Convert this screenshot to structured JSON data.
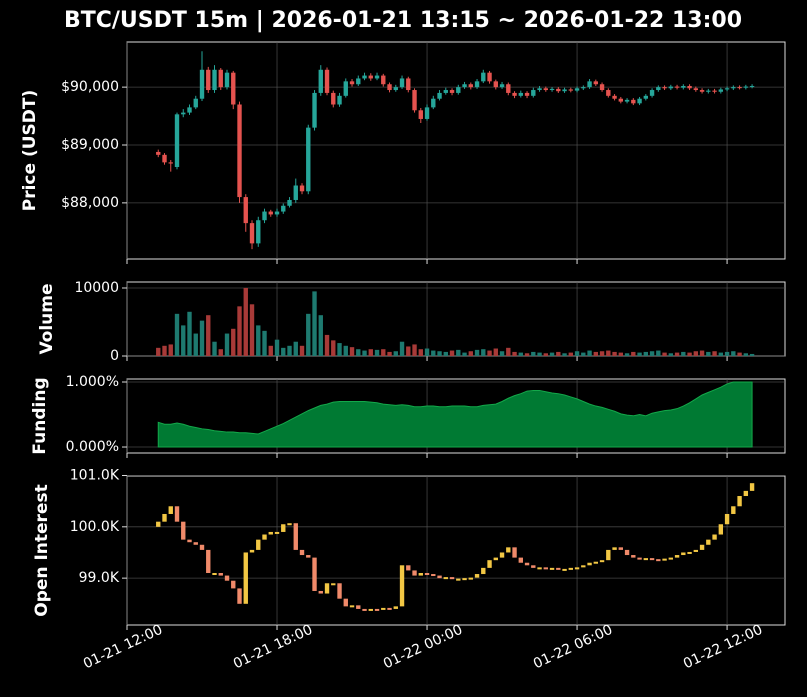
{
  "chart_data": [
    {
      "type": "candlestick",
      "title": "BTC/USDT 15m  |  2026-01-21 13:15 ~ 2026-01-22 13:00",
      "ylabel": "Price (USDT)",
      "up_color": "#26a69a",
      "down_color": "#e5534f",
      "grid": true,
      "x": [
        "2026-01-21 13:15",
        "2026-01-21 13:30",
        "2026-01-21 13:45",
        "2026-01-21 14:00",
        "2026-01-21 14:15",
        "2026-01-21 14:30",
        "2026-01-21 14:45",
        "2026-01-21 15:00",
        "2026-01-21 15:15",
        "2026-01-21 15:30",
        "2026-01-21 15:45",
        "2026-01-21 16:00",
        "2026-01-21 16:15",
        "2026-01-21 16:30",
        "2026-01-21 16:45",
        "2026-01-21 17:00",
        "2026-01-21 17:15",
        "2026-01-21 17:30",
        "2026-01-21 17:45",
        "2026-01-21 18:00",
        "2026-01-21 18:15",
        "2026-01-21 18:30",
        "2026-01-21 18:45",
        "2026-01-21 19:00",
        "2026-01-21 19:15",
        "2026-01-21 19:30",
        "2026-01-21 19:45",
        "2026-01-21 20:00",
        "2026-01-21 20:15",
        "2026-01-21 20:30",
        "2026-01-21 20:45",
        "2026-01-21 21:00",
        "2026-01-21 21:15",
        "2026-01-21 21:30",
        "2026-01-21 21:45",
        "2026-01-21 22:00",
        "2026-01-21 22:15",
        "2026-01-21 22:30",
        "2026-01-21 22:45",
        "2026-01-21 23:00",
        "2026-01-21 23:15",
        "2026-01-21 23:30",
        "2026-01-21 23:45",
        "2026-01-22 00:00",
        "2026-01-22 00:15",
        "2026-01-22 00:30",
        "2026-01-22 00:45",
        "2026-01-22 01:00",
        "2026-01-22 01:15",
        "2026-01-22 01:30",
        "2026-01-22 01:45",
        "2026-01-22 02:00",
        "2026-01-22 02:15",
        "2026-01-22 02:30",
        "2026-01-22 02:45",
        "2026-01-22 03:00",
        "2026-01-22 03:15",
        "2026-01-22 03:30",
        "2026-01-22 03:45",
        "2026-01-22 04:00",
        "2026-01-22 04:15",
        "2026-01-22 04:30",
        "2026-01-22 04:45",
        "2026-01-22 05:00",
        "2026-01-22 05:15",
        "2026-01-22 05:30",
        "2026-01-22 05:45",
        "2026-01-22 06:00",
        "2026-01-22 06:15",
        "2026-01-22 06:30",
        "2026-01-22 06:45",
        "2026-01-22 07:00",
        "2026-01-22 07:15",
        "2026-01-22 07:30",
        "2026-01-22 07:45",
        "2026-01-22 08:00",
        "2026-01-22 08:15",
        "2026-01-22 08:30",
        "2026-01-22 08:45",
        "2026-01-22 09:00",
        "2026-01-22 09:15",
        "2026-01-22 09:30",
        "2026-01-22 09:45",
        "2026-01-22 10:00",
        "2026-01-22 10:15",
        "2026-01-22 10:30",
        "2026-01-22 10:45",
        "2026-01-22 11:00",
        "2026-01-22 11:15",
        "2026-01-22 11:30",
        "2026-01-22 11:45",
        "2026-01-22 12:00",
        "2026-01-22 12:15",
        "2026-01-22 12:30",
        "2026-01-22 12:45",
        "2026-01-22 13:00"
      ],
      "open": [
        88880,
        88830,
        88700,
        88620,
        89530,
        89560,
        89650,
        89800,
        90300,
        89950,
        90300,
        90000,
        90250,
        89700,
        88100,
        87650,
        87300,
        87700,
        87850,
        87800,
        87850,
        87950,
        88050,
        88300,
        88200,
        89300,
        89900,
        90300,
        89900,
        89700,
        89850,
        90100,
        90050,
        90150,
        90200,
        90150,
        90200,
        90050,
        89950,
        90000,
        90150,
        89950,
        89600,
        89450,
        89650,
        89800,
        89900,
        89950,
        89900,
        90000,
        90050,
        90000,
        90100,
        90250,
        90100,
        90000,
        90050,
        89900,
        89850,
        89900,
        89850,
        89950,
        89980,
        89950,
        89970,
        89930,
        89960,
        89940,
        89980,
        90000,
        90100,
        90050,
        89950,
        89850,
        89800,
        89750,
        89780,
        89720,
        89800,
        89850,
        89950,
        90000,
        89980,
        90010,
        89990,
        90020,
        89980,
        89950,
        89920,
        89940,
        89920,
        89960,
        89980,
        90000,
        89990,
        90010
      ],
      "high": [
        88920,
        88860,
        88740,
        89560,
        89620,
        89700,
        89850,
        90620,
        90350,
        90380,
        90330,
        90300,
        90280,
        89750,
        88150,
        87700,
        87760,
        87900,
        87880,
        87900,
        87990,
        88100,
        88420,
        88340,
        89350,
        89950,
        90380,
        90340,
        89940,
        89900,
        90150,
        90140,
        90200,
        90250,
        90240,
        90250,
        90230,
        90080,
        90040,
        90200,
        90180,
        89980,
        89640,
        89700,
        89850,
        89950,
        89990,
        89980,
        90040,
        90090,
        90080,
        90140,
        90300,
        90280,
        90130,
        90090,
        90080,
        89930,
        89940,
        89930,
        89990,
        90020,
        90010,
        90000,
        90000,
        89990,
        89990,
        90010,
        90030,
        90140,
        90130,
        90080,
        89980,
        89880,
        89830,
        89810,
        89810,
        89830,
        89880,
        89980,
        90030,
        90030,
        90040,
        90040,
        90050,
        90050,
        90010,
        89980,
        89970,
        89970,
        89990,
        90010,
        90030,
        90030,
        90040,
        90050
      ],
      "low": [
        88790,
        88660,
        88540,
        88580,
        89480,
        89520,
        89620,
        89760,
        89900,
        89900,
        89950,
        89960,
        89620,
        88000,
        87500,
        87200,
        87240,
        87650,
        87760,
        87760,
        87810,
        87920,
        88000,
        88150,
        88150,
        89250,
        89850,
        89860,
        89650,
        89660,
        89820,
        90010,
        90020,
        90120,
        90110,
        90120,
        90010,
        89910,
        89920,
        89970,
        89910,
        89560,
        89380,
        89420,
        89620,
        89770,
        89870,
        89860,
        89870,
        89970,
        89960,
        89970,
        90070,
        90060,
        89960,
        89970,
        89860,
        89810,
        89820,
        89810,
        89820,
        89920,
        89920,
        89920,
        89900,
        89900,
        89910,
        89910,
        89950,
        89970,
        90020,
        89920,
        89820,
        89770,
        89720,
        89720,
        89690,
        89690,
        89770,
        89820,
        89920,
        89950,
        89950,
        89960,
        89960,
        89950,
        89920,
        89890,
        89890,
        89890,
        89890,
        89930,
        89950,
        89960,
        89960,
        89980
      ],
      "close": [
        88830,
        88700,
        88680,
        89530,
        89560,
        89650,
        89800,
        90300,
        89950,
        90300,
        90000,
        90250,
        89700,
        88100,
        87650,
        87300,
        87700,
        87850,
        87800,
        87850,
        87950,
        88050,
        88300,
        88200,
        89300,
        89900,
        90300,
        89900,
        89700,
        89850,
        90100,
        90050,
        90150,
        90200,
        90150,
        90200,
        90050,
        89950,
        90000,
        90150,
        89950,
        89600,
        89450,
        89650,
        89800,
        89900,
        89950,
        89900,
        90000,
        90050,
        90000,
        90100,
        90250,
        90100,
        90000,
        90050,
        89900,
        89850,
        89900,
        89850,
        89950,
        89980,
        89950,
        89970,
        89930,
        89960,
        89940,
        89980,
        90000,
        90100,
        90050,
        89950,
        89850,
        89800,
        89750,
        89780,
        89720,
        89800,
        89850,
        89950,
        90000,
        89980,
        90010,
        89990,
        90020,
        89980,
        89950,
        89920,
        89940,
        89920,
        89960,
        89980,
        90000,
        89990,
        90010,
        90020
      ],
      "ylim": [
        87030,
        90780
      ],
      "yticks": [
        {
          "value": 88000,
          "label": "$88,000"
        },
        {
          "value": 89000,
          "label": "$89,000"
        },
        {
          "value": 90000,
          "label": "$90,000"
        }
      ]
    },
    {
      "type": "bar",
      "ylabel": "Volume",
      "up_color": "#1e7a70",
      "down_color": "#a83a38",
      "grid": true,
      "values": [
        1200,
        1500,
        1700,
        6200,
        4500,
        6500,
        3300,
        5200,
        6000,
        2100,
        1000,
        3300,
        4000,
        7300,
        10000,
        7600,
        4500,
        3700,
        1500,
        2400,
        1200,
        1500,
        2100,
        1500,
        6200,
        9500,
        6000,
        3100,
        2300,
        1900,
        1500,
        1300,
        1000,
        800,
        1000,
        900,
        1000,
        600,
        700,
        2100,
        1400,
        1700,
        1000,
        1100,
        800,
        700,
        600,
        800,
        900,
        500,
        700,
        900,
        1000,
        800,
        1100,
        700,
        1200,
        600,
        500,
        400,
        600,
        500,
        400,
        500,
        600,
        400,
        500,
        700,
        500,
        800,
        600,
        700,
        800,
        600,
        500,
        400,
        600,
        500,
        600,
        700,
        800,
        500,
        400,
        500,
        600,
        500,
        700,
        800,
        600,
        700,
        500,
        600,
        700,
        500,
        400,
        300
      ],
      "ylim": [
        0,
        10880
      ],
      "yticks": [
        0,
        10000
      ]
    },
    {
      "type": "area",
      "ylabel": "Funding",
      "color": "#007a33",
      "line_color": "#13a84a",
      "grid": true,
      "values": [
        0.38,
        0.35,
        0.35,
        0.37,
        0.35,
        0.32,
        0.3,
        0.28,
        0.27,
        0.25,
        0.24,
        0.23,
        0.23,
        0.22,
        0.22,
        0.21,
        0.2,
        0.24,
        0.28,
        0.32,
        0.36,
        0.41,
        0.46,
        0.51,
        0.56,
        0.6,
        0.64,
        0.66,
        0.69,
        0.7,
        0.7,
        0.7,
        0.7,
        0.7,
        0.69,
        0.68,
        0.66,
        0.65,
        0.64,
        0.65,
        0.64,
        0.62,
        0.62,
        0.63,
        0.63,
        0.62,
        0.62,
        0.63,
        0.63,
        0.63,
        0.62,
        0.62,
        0.64,
        0.65,
        0.66,
        0.7,
        0.75,
        0.79,
        0.82,
        0.86,
        0.87,
        0.87,
        0.85,
        0.83,
        0.82,
        0.8,
        0.77,
        0.74,
        0.7,
        0.66,
        0.63,
        0.61,
        0.58,
        0.55,
        0.51,
        0.49,
        0.48,
        0.5,
        0.48,
        0.52,
        0.54,
        0.56,
        0.57,
        0.59,
        0.63,
        0.68,
        0.74,
        0.8,
        0.84,
        0.88,
        0.92,
        0.97,
        1.0,
        1.0,
        1.0,
        1.0
      ],
      "ylim": [
        -0.092,
        1.046
      ],
      "yticks": [
        {
          "value": 0,
          "label": "0.000%"
        },
        {
          "value": 1,
          "label": "1.000%"
        }
      ]
    },
    {
      "type": "oc_candlestick",
      "ylabel": "Open Interest",
      "up_color": "#f2c744",
      "down_color": "#f08a6a",
      "grid": true,
      "open": [
        100000,
        100100,
        100250,
        100400,
        100100,
        99750,
        99700,
        99650,
        99550,
        99100,
        99100,
        99050,
        98950,
        98800,
        98500,
        99500,
        99550,
        99750,
        99850,
        99900,
        99900,
        100050,
        100070,
        99550,
        99450,
        99400,
        98750,
        98700,
        98900,
        98900,
        98600,
        98450,
        98470,
        98400,
        98380,
        98400,
        98390,
        98420,
        98400,
        98450,
        99250,
        99150,
        99050,
        99100,
        99080,
        99050,
        99000,
        99020,
        98980,
        98990,
        99000,
        99010,
        99080,
        99200,
        99350,
        99400,
        99500,
        99600,
        99400,
        99300,
        99250,
        99200,
        99210,
        99180,
        99200,
        99170,
        99180,
        99200,
        99210,
        99250,
        99300,
        99320,
        99350,
        99550,
        99600,
        99550,
        99450,
        99400,
        99380,
        99390,
        99370,
        99350,
        99380,
        99400,
        99450,
        99500,
        99510,
        99550,
        99650,
        99750,
        99850,
        100050,
        100250,
        100400,
        100600,
        100700
      ],
      "close": [
        100100,
        100250,
        100400,
        100100,
        99750,
        99700,
        99650,
        99550,
        99100,
        99100,
        99050,
        98950,
        98800,
        98500,
        99500,
        99550,
        99750,
        99850,
        99900,
        99900,
        100050,
        100070,
        99550,
        99450,
        99400,
        98750,
        98700,
        98900,
        98900,
        98600,
        98450,
        98470,
        98400,
        98380,
        98400,
        98390,
        98420,
        98400,
        98450,
        99250,
        99150,
        99050,
        99100,
        99080,
        99050,
        99000,
        99020,
        98980,
        98990,
        99000,
        99010,
        99080,
        99200,
        99350,
        99400,
        99500,
        99600,
        99400,
        99300,
        99250,
        99200,
        99210,
        99180,
        99200,
        99170,
        99180,
        99200,
        99210,
        99250,
        99300,
        99320,
        99350,
        99550,
        99600,
        99550,
        99450,
        99400,
        99380,
        99390,
        99370,
        99350,
        99380,
        99400,
        99450,
        99500,
        99510,
        99550,
        99650,
        99750,
        99850,
        100050,
        100250,
        100400,
        100600,
        100700,
        100850
      ],
      "ylim": [
        98087,
        100990
      ],
      "yticks": [
        {
          "value": 99000,
          "label": "99.0K"
        },
        {
          "value": 100000,
          "label": "100.0K"
        },
        {
          "value": 101000,
          "label": "101.0K"
        }
      ],
      "xlim": [
        "2026-01-21 12:00",
        "2026-01-22 14:19"
      ],
      "xticks": [
        {
          "value": "2026-01-21 12:00",
          "label": "01-21 12:00"
        },
        {
          "value": "2026-01-21 18:00",
          "label": "01-21 18:00"
        },
        {
          "value": "2026-01-22 00:00",
          "label": "01-22 00:00"
        },
        {
          "value": "2026-01-22 06:00",
          "label": "01-22 06:00"
        },
        {
          "value": "2026-01-22 12:00",
          "label": "01-22 12:00"
        }
      ]
    }
  ]
}
